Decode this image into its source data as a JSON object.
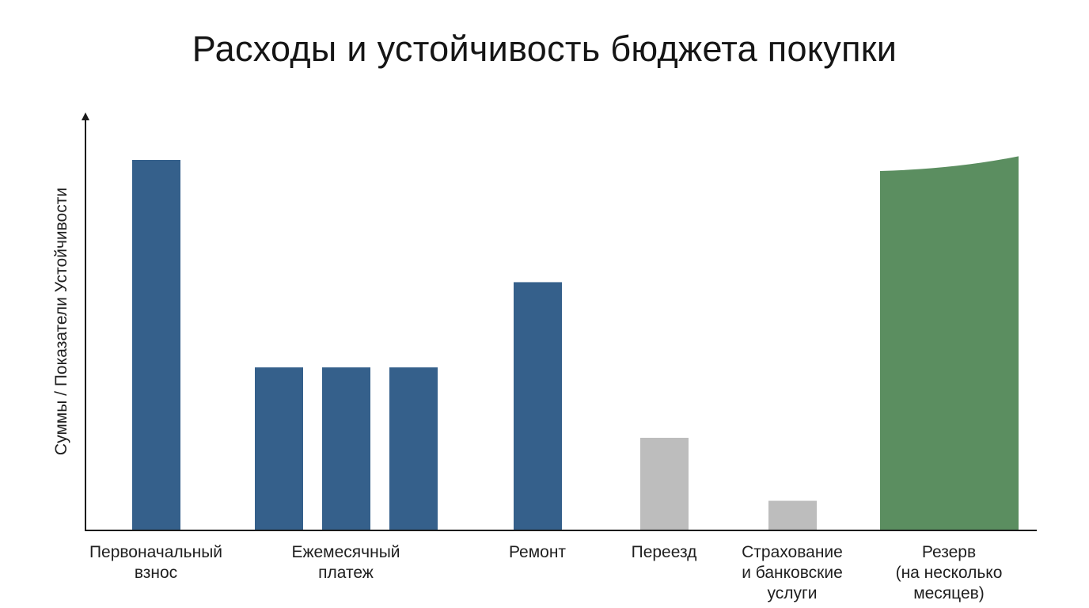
{
  "chart_data": {
    "type": "bar",
    "title": "Расходы и устойчивость бюджета покупки",
    "xlabel": "",
    "ylabel": "Суммы / Показатели Устойчивости",
    "ylim": [
      0,
      100
    ],
    "grid": false,
    "legend": "none",
    "categories": [
      {
        "label": [
          "Первоначальный",
          "взнос"
        ]
      },
      {
        "label": [
          "Ежемесячный",
          "платеж"
        ]
      },
      {
        "label": [
          "Ремонт"
        ]
      },
      {
        "label": [
          "Переезд"
        ]
      },
      {
        "label": [
          "Страхование",
          "и банковские",
          "услуги"
        ]
      },
      {
        "label": [
          "Резерв",
          "(на несколько",
          "месяцев)"
        ]
      }
    ],
    "bars": [
      {
        "category": 0,
        "value": 100,
        "color": "#35608b",
        "shape": "rect"
      },
      {
        "category": 1,
        "value": 44,
        "color": "#35608b",
        "shape": "rect"
      },
      {
        "category": 1,
        "value": 44,
        "color": "#35608b",
        "shape": "rect"
      },
      {
        "category": 1,
        "value": 44,
        "color": "#35608b",
        "shape": "rect"
      },
      {
        "category": 2,
        "value": 67,
        "color": "#35608b",
        "shape": "rect"
      },
      {
        "category": 3,
        "value": 25,
        "color": "#bdbdbd",
        "shape": "rect"
      },
      {
        "category": 4,
        "value": 8,
        "color": "#bdbdbd",
        "shape": "rect"
      },
      {
        "category": 5,
        "value": 97,
        "value_end": 101,
        "color": "#5b8e60",
        "shape": "rising-top"
      }
    ],
    "colors": {
      "axis": "#1a1a1a",
      "expense": "#35608b",
      "minor_expense": "#bdbdbd",
      "reserve": "#5b8e60"
    }
  }
}
